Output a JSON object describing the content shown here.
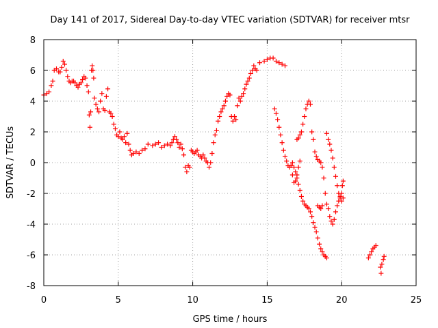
{
  "chart_data": {
    "type": "scatter",
    "title": "Day 141 of 2017, Sidereal Day-to-day VTEC variation (SDTVAR) for receiver mtsr",
    "xlabel": "GPS time / hours",
    "ylabel": "SDTVAR / TECUs",
    "xlim": [
      0,
      25
    ],
    "ylim": [
      -8,
      8
    ],
    "xticks": [
      0,
      5,
      10,
      15,
      20,
      25
    ],
    "yticks": [
      -8,
      -6,
      -4,
      -2,
      0,
      2,
      4,
      6,
      8
    ],
    "grid": true,
    "marker": "+",
    "color": "#ff0000",
    "series": [
      {
        "name": "",
        "points": [
          [
            0.0,
            4.4
          ],
          [
            0.2,
            4.5
          ],
          [
            0.35,
            4.6
          ],
          [
            0.5,
            5.0
          ],
          [
            0.6,
            5.3
          ],
          [
            0.7,
            6.0
          ],
          [
            0.85,
            6.1
          ],
          [
            1.0,
            5.9
          ],
          [
            1.1,
            5.9
          ],
          [
            1.2,
            6.2
          ],
          [
            1.3,
            6.6
          ],
          [
            1.4,
            6.4
          ],
          [
            1.5,
            6.0
          ],
          [
            1.6,
            5.6
          ],
          [
            1.7,
            5.3
          ],
          [
            1.8,
            5.2
          ],
          [
            1.9,
            5.3
          ],
          [
            2.0,
            5.3
          ],
          [
            2.1,
            5.2
          ],
          [
            2.2,
            5.0
          ],
          [
            2.3,
            4.9
          ],
          [
            2.4,
            5.1
          ],
          [
            2.5,
            5.2
          ],
          [
            2.6,
            5.4
          ],
          [
            2.7,
            5.6
          ],
          [
            2.8,
            5.5
          ],
          [
            2.9,
            5.0
          ],
          [
            3.0,
            4.6
          ],
          [
            3.05,
            3.1
          ],
          [
            3.1,
            2.3
          ],
          [
            3.15,
            3.3
          ],
          [
            3.2,
            6.0
          ],
          [
            3.25,
            6.3
          ],
          [
            3.3,
            6.0
          ],
          [
            3.35,
            5.5
          ],
          [
            3.4,
            4.2
          ],
          [
            3.5,
            3.8
          ],
          [
            3.6,
            3.5
          ],
          [
            3.7,
            3.3
          ],
          [
            3.8,
            4.0
          ],
          [
            3.9,
            4.5
          ],
          [
            4.0,
            3.5
          ],
          [
            4.1,
            3.4
          ],
          [
            4.2,
            4.3
          ],
          [
            4.3,
            4.8
          ],
          [
            4.4,
            3.3
          ],
          [
            4.5,
            3.2
          ],
          [
            4.6,
            3.0
          ],
          [
            4.7,
            2.5
          ],
          [
            4.8,
            2.2
          ],
          [
            4.9,
            1.8
          ],
          [
            5.0,
            1.7
          ],
          [
            5.1,
            2.0
          ],
          [
            5.2,
            1.6
          ],
          [
            5.3,
            1.5
          ],
          [
            5.4,
            1.7
          ],
          [
            5.5,
            1.3
          ],
          [
            5.6,
            1.9
          ],
          [
            5.7,
            1.2
          ],
          [
            5.8,
            0.8
          ],
          [
            5.9,
            0.5
          ],
          [
            6.0,
            0.6
          ],
          [
            6.2,
            0.7
          ],
          [
            6.4,
            0.6
          ],
          [
            6.6,
            0.8
          ],
          [
            6.8,
            0.9
          ],
          [
            7.0,
            1.2
          ],
          [
            7.3,
            1.1
          ],
          [
            7.5,
            1.2
          ],
          [
            7.7,
            1.3
          ],
          [
            7.9,
            1.0
          ],
          [
            8.1,
            1.1
          ],
          [
            8.3,
            1.2
          ],
          [
            8.5,
            1.1
          ],
          [
            8.6,
            1.3
          ],
          [
            8.7,
            1.5
          ],
          [
            8.8,
            1.7
          ],
          [
            8.9,
            1.5
          ],
          [
            9.0,
            1.3
          ],
          [
            9.1,
            1.0
          ],
          [
            9.2,
            1.2
          ],
          [
            9.3,
            0.9
          ],
          [
            9.4,
            0.5
          ],
          [
            9.5,
            -0.3
          ],
          [
            9.6,
            -0.6
          ],
          [
            9.7,
            -0.2
          ],
          [
            9.8,
            -0.3
          ],
          [
            9.9,
            0.8
          ],
          [
            10.0,
            0.7
          ],
          [
            10.1,
            0.6
          ],
          [
            10.2,
            0.7
          ],
          [
            10.3,
            0.8
          ],
          [
            10.4,
            0.5
          ],
          [
            10.5,
            0.4
          ],
          [
            10.6,
            0.3
          ],
          [
            10.7,
            0.5
          ],
          [
            10.8,
            0.3
          ],
          [
            10.9,
            0.1
          ],
          [
            11.0,
            0.0
          ],
          [
            11.1,
            -0.3
          ],
          [
            11.2,
            0.0
          ],
          [
            11.3,
            0.6
          ],
          [
            11.4,
            1.3
          ],
          [
            11.5,
            1.8
          ],
          [
            11.6,
            2.1
          ],
          [
            11.7,
            2.7
          ],
          [
            11.8,
            3.0
          ],
          [
            11.9,
            3.3
          ],
          [
            12.0,
            3.5
          ],
          [
            12.1,
            3.7
          ],
          [
            12.2,
            4.0
          ],
          [
            12.3,
            4.3
          ],
          [
            12.4,
            4.5
          ],
          [
            12.5,
            4.4
          ],
          [
            12.6,
            3.0
          ],
          [
            12.7,
            2.7
          ],
          [
            12.8,
            3.0
          ],
          [
            12.9,
            2.8
          ],
          [
            13.0,
            3.7
          ],
          [
            13.1,
            4.2
          ],
          [
            13.2,
            4.0
          ],
          [
            13.3,
            4.3
          ],
          [
            13.4,
            4.5
          ],
          [
            13.5,
            4.8
          ],
          [
            13.6,
            5.1
          ],
          [
            13.7,
            5.3
          ],
          [
            13.8,
            5.5
          ],
          [
            13.9,
            5.8
          ],
          [
            14.0,
            6.0
          ],
          [
            14.1,
            6.3
          ],
          [
            14.2,
            6.1
          ],
          [
            14.3,
            6.0
          ],
          [
            14.5,
            6.5
          ],
          [
            14.8,
            6.6
          ],
          [
            15.0,
            6.7
          ],
          [
            15.2,
            6.8
          ],
          [
            15.4,
            6.8
          ],
          [
            15.6,
            6.6
          ],
          [
            15.8,
            6.5
          ],
          [
            16.0,
            6.4
          ],
          [
            16.2,
            6.3
          ],
          [
            15.5,
            3.5
          ],
          [
            15.6,
            3.2
          ],
          [
            15.7,
            2.8
          ],
          [
            15.8,
            2.3
          ],
          [
            15.9,
            1.8
          ],
          [
            16.0,
            1.3
          ],
          [
            16.1,
            0.8
          ],
          [
            16.2,
            0.4
          ],
          [
            16.3,
            0.1
          ],
          [
            16.4,
            -0.2
          ],
          [
            16.5,
            -0.3
          ],
          [
            16.6,
            -0.2
          ],
          [
            16.7,
            0.0
          ],
          [
            16.8,
            -0.3
          ],
          [
            16.9,
            -0.6
          ],
          [
            17.0,
            -1.0
          ],
          [
            17.1,
            -1.4
          ],
          [
            17.2,
            -1.8
          ],
          [
            17.3,
            -2.2
          ],
          [
            17.4,
            -2.5
          ],
          [
            17.5,
            -2.7
          ],
          [
            17.6,
            -2.8
          ],
          [
            17.7,
            -2.9
          ],
          [
            17.8,
            -3.0
          ],
          [
            17.9,
            -3.2
          ],
          [
            18.0,
            -3.5
          ],
          [
            18.1,
            -3.9
          ],
          [
            18.2,
            -4.2
          ],
          [
            18.3,
            -4.5
          ],
          [
            18.4,
            -4.9
          ],
          [
            18.5,
            -5.3
          ],
          [
            18.6,
            -5.6
          ],
          [
            18.7,
            -5.8
          ],
          [
            18.8,
            -6.0
          ],
          [
            18.9,
            -6.1
          ],
          [
            19.0,
            -6.2
          ],
          [
            17.0,
            1.5
          ],
          [
            17.1,
            1.6
          ],
          [
            17.2,
            1.8
          ],
          [
            17.3,
            2.0
          ],
          [
            17.4,
            2.5
          ],
          [
            17.5,
            3.0
          ],
          [
            17.6,
            3.5
          ],
          [
            17.7,
            3.8
          ],
          [
            17.8,
            4.0
          ],
          [
            17.9,
            3.8
          ],
          [
            18.0,
            2.0
          ],
          [
            18.1,
            1.5
          ],
          [
            18.2,
            0.7
          ],
          [
            18.3,
            0.4
          ],
          [
            18.4,
            0.2
          ],
          [
            18.5,
            0.1
          ],
          [
            18.6,
            0.0
          ],
          [
            18.7,
            -0.3
          ],
          [
            18.8,
            -1.0
          ],
          [
            18.9,
            -2.0
          ],
          [
            19.0,
            -2.7
          ],
          [
            19.1,
            -3.0
          ],
          [
            19.2,
            -3.5
          ],
          [
            19.3,
            -3.8
          ],
          [
            19.4,
            -4.0
          ],
          [
            19.5,
            -3.7
          ],
          [
            19.6,
            -3.2
          ],
          [
            19.7,
            -2.8
          ],
          [
            19.8,
            -2.5
          ],
          [
            19.9,
            -2.2
          ],
          [
            20.0,
            -2.0
          ],
          [
            20.05,
            -1.5
          ],
          [
            20.1,
            -1.2
          ],
          [
            18.4,
            -2.8
          ],
          [
            18.5,
            -2.9
          ],
          [
            18.6,
            -3.0
          ],
          [
            18.7,
            -2.8
          ],
          [
            16.7,
            -0.8
          ],
          [
            16.8,
            -1.3
          ],
          [
            16.9,
            -1.2
          ],
          [
            17.0,
            -0.8
          ],
          [
            17.1,
            -0.3
          ],
          [
            17.2,
            0.1
          ],
          [
            19.0,
            1.9
          ],
          [
            19.1,
            1.5
          ],
          [
            19.2,
            1.2
          ],
          [
            19.3,
            0.8
          ],
          [
            19.4,
            0.3
          ],
          [
            19.5,
            -0.3
          ],
          [
            19.6,
            -0.9
          ],
          [
            19.7,
            -1.5
          ],
          [
            19.8,
            -2.0
          ],
          [
            19.9,
            -2.3
          ],
          [
            20.0,
            -2.5
          ],
          [
            20.1,
            -2.3
          ],
          [
            21.8,
            -6.2
          ],
          [
            21.9,
            -6.0
          ],
          [
            22.0,
            -5.8
          ],
          [
            22.1,
            -5.6
          ],
          [
            22.2,
            -5.5
          ],
          [
            22.3,
            -5.4
          ],
          [
            22.6,
            -6.8
          ],
          [
            22.65,
            -7.2
          ],
          [
            22.7,
            -6.6
          ],
          [
            22.8,
            -6.3
          ],
          [
            22.85,
            -6.1
          ]
        ]
      }
    ]
  }
}
